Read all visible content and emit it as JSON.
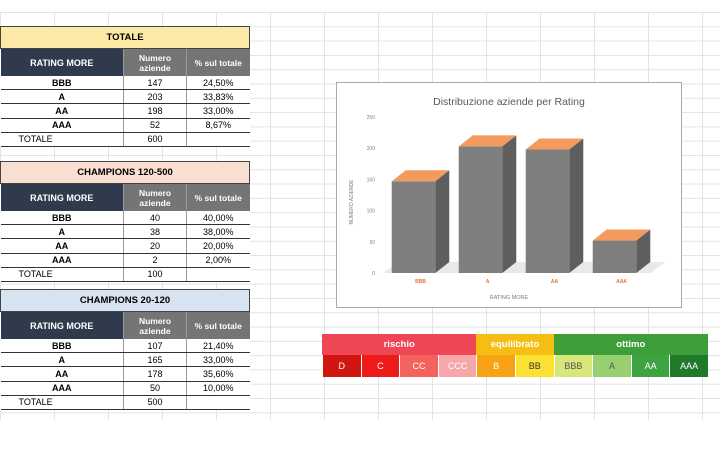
{
  "tables": [
    {
      "title": "TOTALE",
      "headers": [
        "RATING MORE",
        "Numero aziende",
        "% sul totale"
      ],
      "rows": [
        {
          "rating": "BBB",
          "count": "147",
          "pct": "24,50%"
        },
        {
          "rating": "A",
          "count": "203",
          "pct": "33,83%"
        },
        {
          "rating": "AA",
          "count": "198",
          "pct": "33,00%"
        },
        {
          "rating": "AAA",
          "count": "52",
          "pct": "8,67%"
        }
      ],
      "total_label": "TOTALE",
      "total_value": "600"
    },
    {
      "title": "CHAMPIONS 120-500",
      "headers": [
        "RATING MORE",
        "Numero aziende",
        "% sul totale"
      ],
      "rows": [
        {
          "rating": "BBB",
          "count": "40",
          "pct": "40,00%"
        },
        {
          "rating": "A",
          "count": "38",
          "pct": "38,00%"
        },
        {
          "rating": "AA",
          "count": "20",
          "pct": "20,00%"
        },
        {
          "rating": "AAA",
          "count": "2",
          "pct": "2,00%"
        }
      ],
      "total_label": "TOTALE",
      "total_value": "100"
    },
    {
      "title": "CHAMPIONS 20-120",
      "headers": [
        "RATING MORE",
        "Numero aziende",
        "% sul totale"
      ],
      "rows": [
        {
          "rating": "BBB",
          "count": "107",
          "pct": "21,40%"
        },
        {
          "rating": "A",
          "count": "165",
          "pct": "33,00%"
        },
        {
          "rating": "AA",
          "count": "178",
          "pct": "35,60%"
        },
        {
          "rating": "AAA",
          "count": "50",
          "pct": "10,00%"
        }
      ],
      "total_label": "TOTALE",
      "total_value": "500"
    }
  ],
  "chart_data": {
    "type": "bar",
    "title": "Distribuzione aziende per Rating",
    "categories": [
      "BBB",
      "A",
      "AA",
      "AAA"
    ],
    "values": [
      147,
      203,
      198,
      52
    ],
    "xlabel": "RATING MORE",
    "ylabel": "NUMERO AZIENDE",
    "ylim": [
      0,
      250
    ],
    "yticks": [
      "0",
      "50",
      "100",
      "150",
      "200",
      "250"
    ],
    "bar_color": "#7f7f7f",
    "bar_top_color": "#f39b5e",
    "category_label_color": "#e6722d",
    "grid": false
  },
  "rating_scale": {
    "sections": [
      {
        "label": "rischio",
        "color": "#ee4655",
        "cells": [
          {
            "label": "D",
            "bg": "#d1160f",
            "fg": "#ffffff"
          },
          {
            "label": "C",
            "bg": "#ee1b1b",
            "fg": "#ffffff"
          },
          {
            "label": "CC",
            "bg": "#f4625d",
            "fg": "#ffffff"
          },
          {
            "label": "CCC",
            "bg": "#f6a7a9",
            "fg": "#ffffff"
          }
        ]
      },
      {
        "label": "equilibrato",
        "color": "#f6bd12",
        "cells": [
          {
            "label": "B",
            "bg": "#f7a114",
            "fg": "#ffffff"
          },
          {
            "label": "BB",
            "bg": "#fbe232",
            "fg": "#333333"
          }
        ]
      },
      {
        "label": "ottimo",
        "color": "#3e9e3a",
        "cells": [
          {
            "label": "BBB",
            "bg": "#d8e67a",
            "fg": "#555555"
          },
          {
            "label": "A",
            "bg": "#98cf70",
            "fg": "#555555"
          },
          {
            "label": "AA",
            "bg": "#3ea341",
            "fg": "#ffffff"
          },
          {
            "label": "AAA",
            "bg": "#1f7a2c",
            "fg": "#ffffff"
          }
        ]
      }
    ]
  }
}
